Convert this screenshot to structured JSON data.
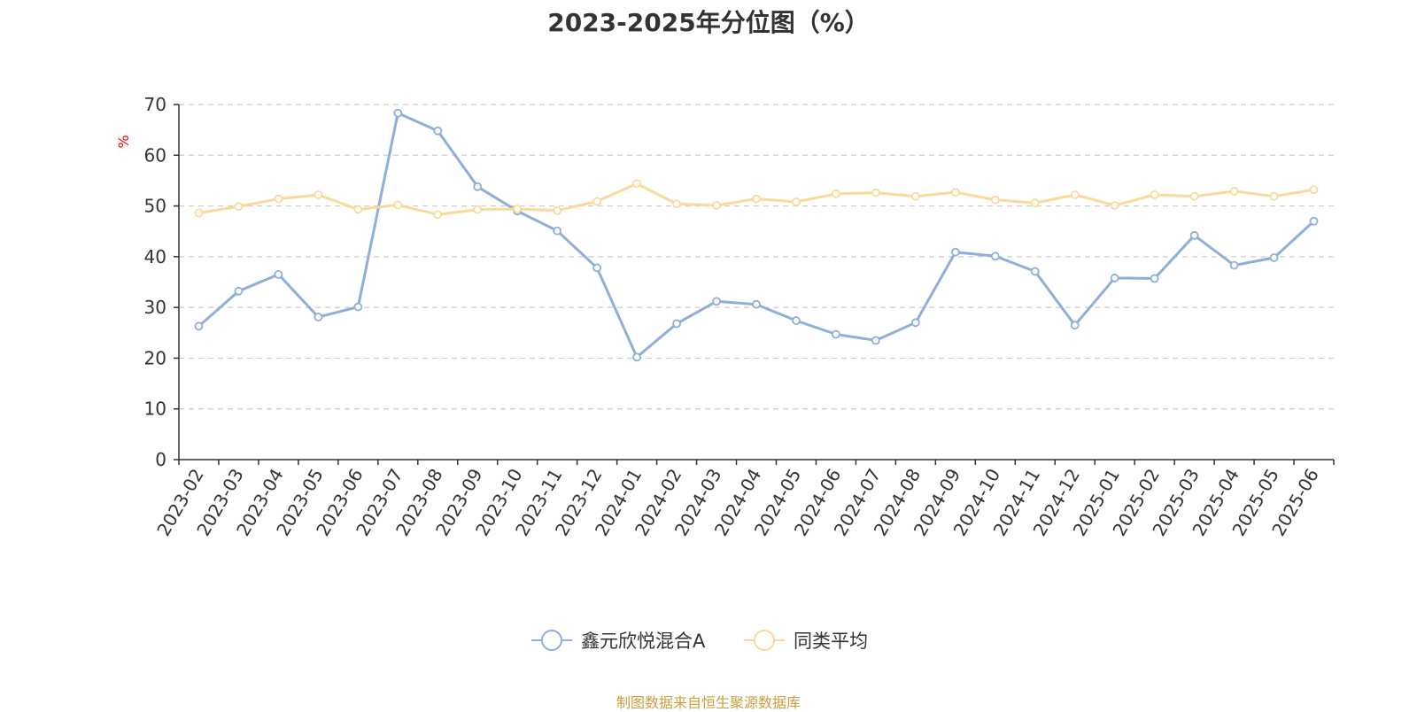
{
  "chart_data": {
    "type": "line",
    "title": "2023-2025年分位图（%）",
    "ylabel": "%",
    "ylim": [
      0,
      70
    ],
    "yticks": [
      0,
      10,
      20,
      30,
      40,
      50,
      60,
      70
    ],
    "grid": true,
    "legend_position": "bottom-center",
    "categories": [
      "2023-02",
      "2023-03",
      "2023-04",
      "2023-05",
      "2023-06",
      "2023-07",
      "2023-08",
      "2023-09",
      "2023-10",
      "2023-11",
      "2023-12",
      "2024-01",
      "2024-02",
      "2024-03",
      "2024-04",
      "2024-05",
      "2024-06",
      "2024-07",
      "2024-08",
      "2024-09",
      "2024-10",
      "2024-11",
      "2024-12",
      "2025-01",
      "2025-02",
      "2025-03",
      "2025-04",
      "2025-05",
      "2025-06"
    ],
    "series": [
      {
        "name": "鑫元欣悦混合A",
        "color": "#8eaedb",
        "values": [
          26.3,
          33.2,
          36.5,
          28.1,
          30.1,
          68.3,
          64.8,
          53.8,
          49.0,
          45.1,
          37.8,
          20.2,
          26.8,
          31.2,
          30.6,
          27.4,
          24.7,
          23.5,
          27.0,
          40.9,
          40.1,
          37.1,
          26.5,
          35.8,
          35.7,
          44.2,
          38.3,
          39.8,
          47.0
        ]
      },
      {
        "name": "同类平均",
        "color": "#fbd99a",
        "values": [
          48.6,
          49.9,
          51.4,
          52.2,
          49.3,
          50.2,
          48.3,
          49.3,
          49.4,
          49.1,
          50.9,
          54.4,
          50.4,
          50.1,
          51.4,
          50.8,
          52.4,
          52.6,
          51.9,
          52.7,
          51.2,
          50.6,
          52.2,
          50.1,
          52.2,
          51.9,
          52.9,
          51.9,
          53.2
        ]
      }
    ]
  },
  "source_note": "制图数据来自恒生聚源数据库",
  "colors": {
    "axis": "#333333",
    "grid": "#cccccc",
    "unit_label": "#ff0000",
    "source_note": "#c9a03c"
  }
}
